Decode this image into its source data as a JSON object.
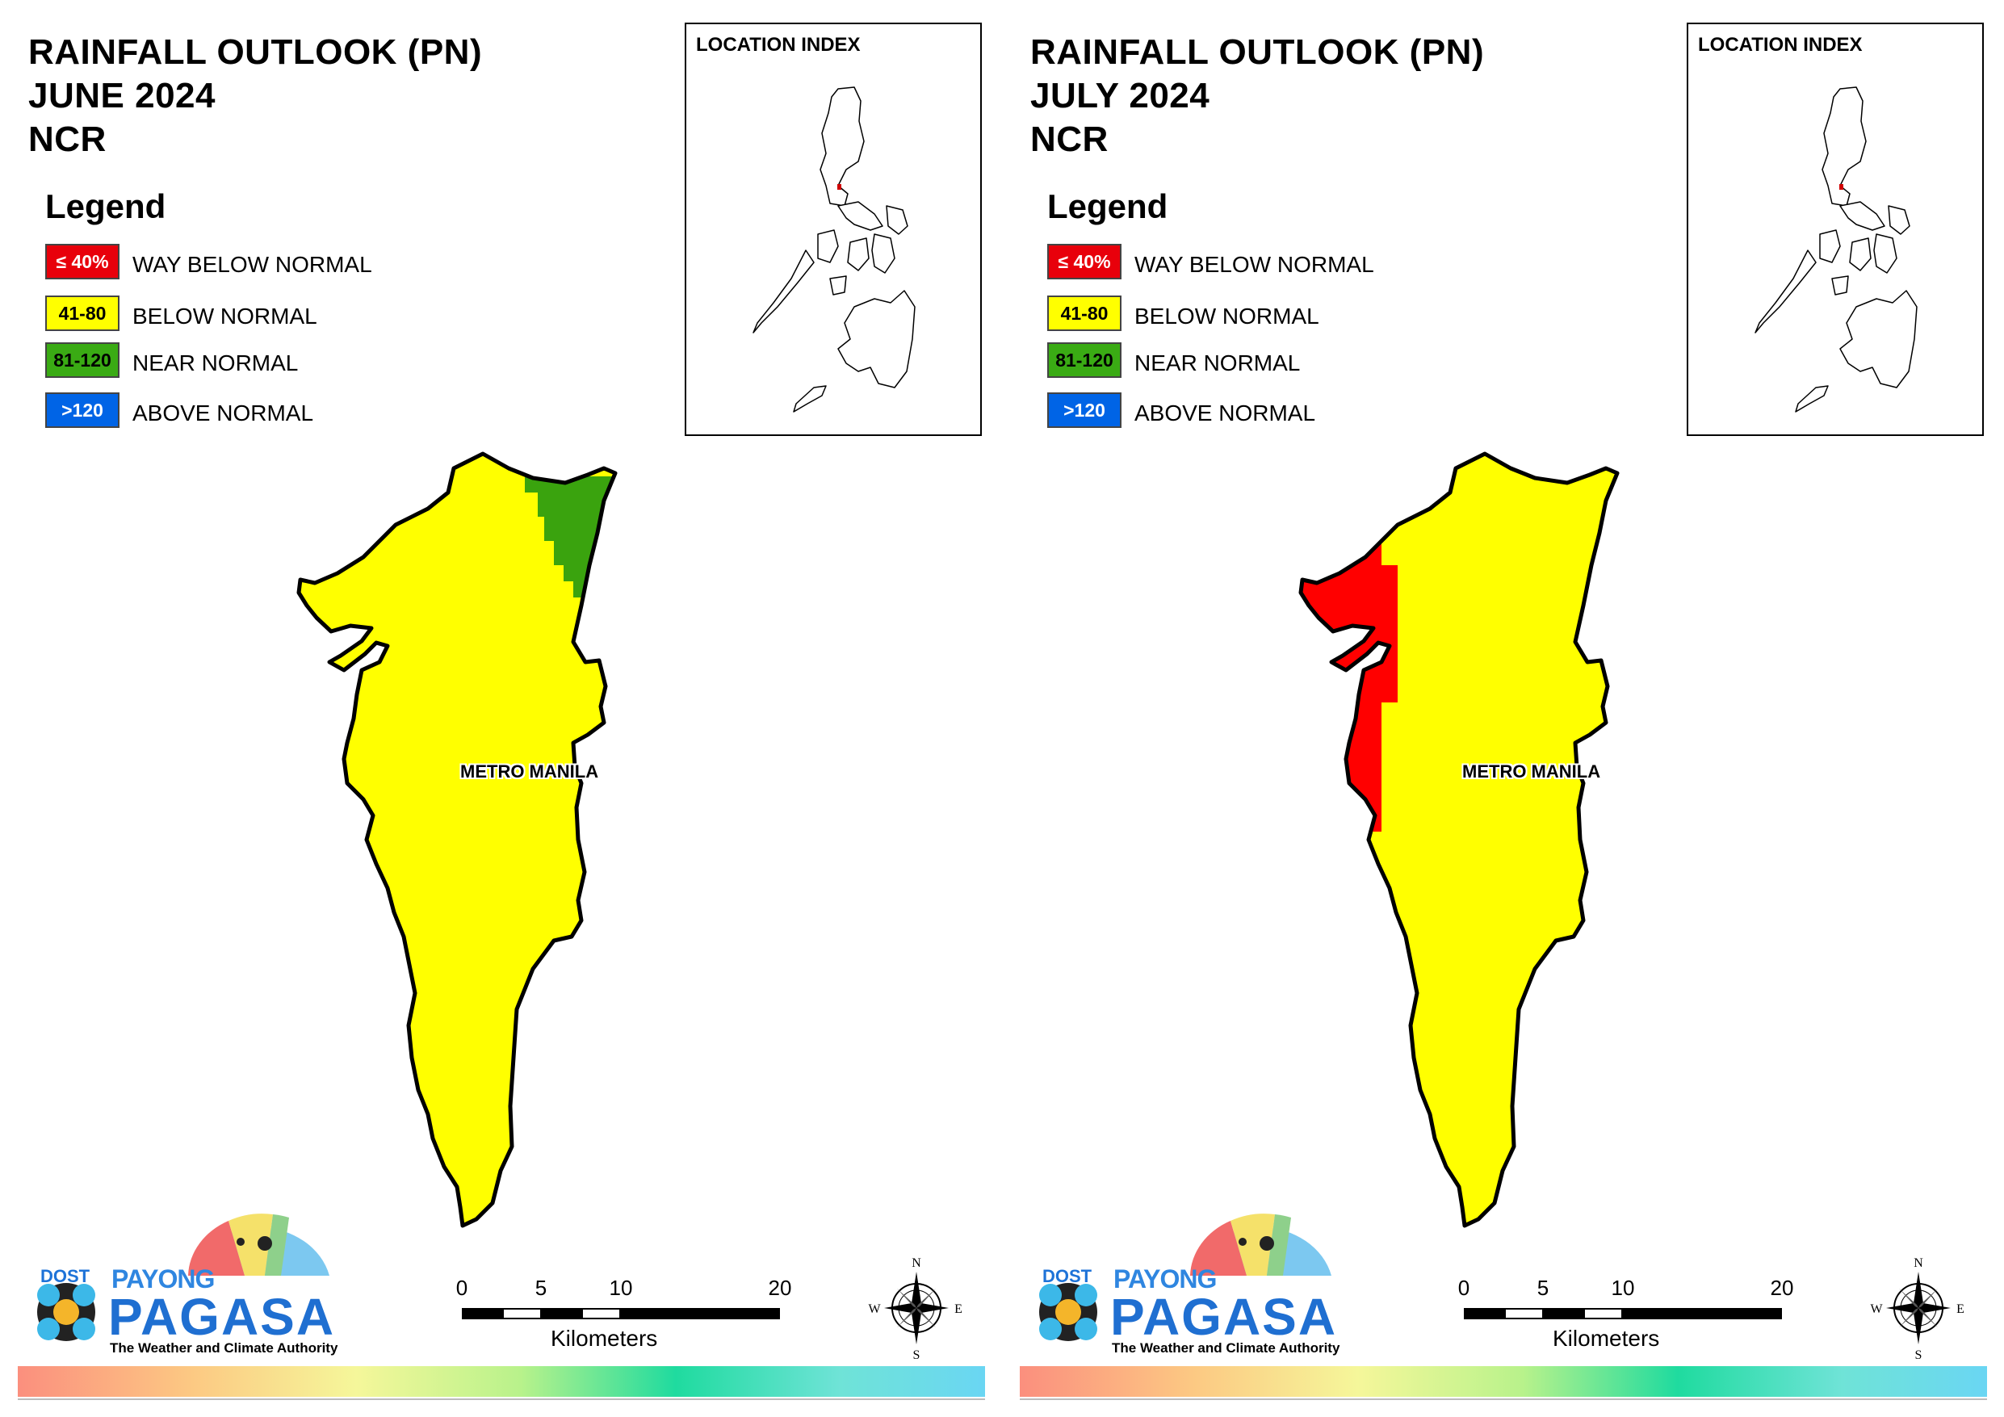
{
  "panels": [
    {
      "title_lines": [
        "RAINFALL OUTLOOK (PN)",
        "JUNE 2024",
        "NCR"
      ],
      "legend_title": "Legend",
      "legend": [
        {
          "swatch_text": "≤ 40%",
          "label": "WAY BELOW NORMAL",
          "color": "#e8000b",
          "text_color": "#ffffff"
        },
        {
          "swatch_text": "41-80",
          "label": "BELOW NORMAL",
          "color": "#ffff00",
          "text_color": "#000000"
        },
        {
          "swatch_text": "81-120",
          "label": "NEAR NORMAL",
          "color": "#3aab14",
          "text_color": "#000000"
        },
        {
          "swatch_text": ">120",
          "label": "ABOVE NORMAL",
          "color": "#0064e6",
          "text_color": "#ffffff"
        }
      ],
      "location_index_title": "LOCATION INDEX",
      "place_label": "METRO MANILA",
      "map_classes": [
        "below-normal",
        "near-normal"
      ]
    },
    {
      "title_lines": [
        "RAINFALL OUTLOOK (PN)",
        "JULY 2024",
        "NCR"
      ],
      "legend_title": "Legend",
      "legend": [
        {
          "swatch_text": "≤ 40%",
          "label": "WAY BELOW NORMAL",
          "color": "#e8000b",
          "text_color": "#ffffff"
        },
        {
          "swatch_text": "41-80",
          "label": "BELOW NORMAL",
          "color": "#ffff00",
          "text_color": "#000000"
        },
        {
          "swatch_text": "81-120",
          "label": "NEAR NORMAL",
          "color": "#3aab14",
          "text_color": "#000000"
        },
        {
          "swatch_text": ">120",
          "label": "ABOVE NORMAL",
          "color": "#0064e6",
          "text_color": "#ffffff"
        }
      ],
      "location_index_title": "LOCATION INDEX",
      "place_label": "METRO MANILA",
      "map_classes": [
        "way-below-normal",
        "below-normal"
      ]
    }
  ],
  "scale": {
    "ticks": [
      "0",
      "5",
      "10",
      "20"
    ],
    "unit": "Kilometers"
  },
  "compass": {
    "n": "N",
    "s": "S",
    "e": "E",
    "w": "W"
  },
  "logo": {
    "dost": "DOST",
    "payong": "PAYONG",
    "pagasa": "PAGASA",
    "tagline": "The Weather and Climate Authority"
  },
  "colors": {
    "way_below_normal": "#ff0000",
    "below_normal": "#ffff00",
    "near_normal": "#3aa30e",
    "above_normal": "#0064e6",
    "outline": "#000000"
  }
}
